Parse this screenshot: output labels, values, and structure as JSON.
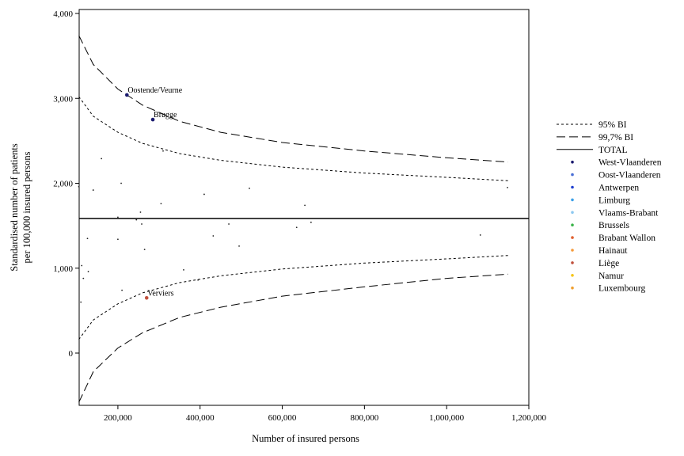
{
  "chart_data": {
    "type": "scatter",
    "title": "",
    "xlabel": "Number of insured persons",
    "ylabel_lines": [
      "Standardised number of patients",
      "per 100,000 insured persons"
    ],
    "xlim": [
      100000,
      1200000
    ],
    "ylim": [
      -600,
      4000
    ],
    "x_ticks": [
      200000,
      400000,
      600000,
      800000,
      1000000,
      1200000
    ],
    "x_tick_labels": [
      "200,000",
      "400,000",
      "600,000",
      "800,000",
      "1,000,000",
      "1,200,000"
    ],
    "y_ticks": [
      0,
      1000,
      2000,
      3000,
      4000
    ],
    "y_tick_labels": [
      "0",
      "1,000",
      "2,000",
      "3,000",
      "4,000"
    ],
    "total": 1585,
    "limit_lines": [
      {
        "name": "95% BI",
        "style": "short-dash",
        "x": [
          105000,
          140000,
          200000,
          260000,
          350000,
          450000,
          600000,
          800000,
          1000000,
          1150000
        ],
        "upper": [
          3020,
          2790,
          2600,
          2470,
          2350,
          2270,
          2190,
          2120,
          2070,
          2030
        ],
        "lower": [
          160,
          390,
          580,
          710,
          830,
          910,
          990,
          1060,
          1110,
          1150
        ]
      },
      {
        "name": "99,7% BI",
        "style": "long-dash",
        "x": [
          105000,
          140000,
          200000,
          260000,
          350000,
          450000,
          600000,
          800000,
          1000000,
          1150000
        ],
        "upper": [
          3740,
          3400,
          3110,
          2920,
          2730,
          2600,
          2480,
          2380,
          2300,
          2250
        ],
        "lower": [
          -580,
          -220,
          60,
          240,
          420,
          540,
          670,
          780,
          880,
          930
        ]
      }
    ],
    "legend": [
      {
        "label": "95% BI",
        "kind": "short-dash"
      },
      {
        "label": "99,7% BI",
        "kind": "long-dash"
      },
      {
        "label": "TOTAL",
        "kind": "solid"
      },
      {
        "label": "West-Vlaanderen",
        "kind": "dot",
        "color": "#1a1a6e"
      },
      {
        "label": "Oost-Vlaanderen",
        "kind": "dot",
        "color": "#4a6fd6"
      },
      {
        "label": "Antwerpen",
        "kind": "dot",
        "color": "#1f3fd0"
      },
      {
        "label": "Limburg",
        "kind": "dot",
        "color": "#3aa0e8"
      },
      {
        "label": "Vlaams-Brabant",
        "kind": "dot",
        "color": "#8cc8f0"
      },
      {
        "label": "Brussels",
        "kind": "dot",
        "color": "#3cb44b"
      },
      {
        "label": "Brabant Wallon",
        "kind": "dot",
        "color": "#e06030"
      },
      {
        "label": "Hainaut",
        "kind": "dot",
        "color": "#f59a3a"
      },
      {
        "label": "Liège",
        "kind": "dot",
        "color": "#c0503c"
      },
      {
        "label": "Namur",
        "kind": "dot",
        "color": "#f5c518"
      },
      {
        "label": "Luxembourg",
        "kind": "dot",
        "color": "#f0a030"
      }
    ],
    "highlighted_points": [
      {
        "label": "Oostende/Veurne",
        "x": 222000,
        "y": 3040,
        "color": "#1a1a6e"
      },
      {
        "label": "Brugge",
        "x": 285000,
        "y": 2750,
        "color": "#1a1a6e"
      },
      {
        "label": "Verviers",
        "x": 270000,
        "y": 650,
        "color": "#c0503c"
      }
    ],
    "points": [
      {
        "x": 105000,
        "y": 1960
      },
      {
        "x": 110000,
        "y": 600
      },
      {
        "x": 112000,
        "y": 1030
      },
      {
        "x": 116000,
        "y": 880
      },
      {
        "x": 126000,
        "y": 1350
      },
      {
        "x": 128000,
        "y": 960
      },
      {
        "x": 140000,
        "y": 1920
      },
      {
        "x": 160000,
        "y": 2290
      },
      {
        "x": 200000,
        "y": 1340
      },
      {
        "x": 200000,
        "y": 1600
      },
      {
        "x": 208000,
        "y": 2000
      },
      {
        "x": 210000,
        "y": 740
      },
      {
        "x": 245000,
        "y": 1570
      },
      {
        "x": 255000,
        "y": 1660
      },
      {
        "x": 258000,
        "y": 1520
      },
      {
        "x": 265000,
        "y": 1220
      },
      {
        "x": 305000,
        "y": 1760
      },
      {
        "x": 310000,
        "y": 2380
      },
      {
        "x": 360000,
        "y": 980
      },
      {
        "x": 395000,
        "y": 860
      },
      {
        "x": 410000,
        "y": 1870
      },
      {
        "x": 432000,
        "y": 1380
      },
      {
        "x": 470000,
        "y": 1520
      },
      {
        "x": 495000,
        "y": 1260
      },
      {
        "x": 520000,
        "y": 1940
      },
      {
        "x": 635000,
        "y": 1480
      },
      {
        "x": 655000,
        "y": 1740
      },
      {
        "x": 670000,
        "y": 1540
      },
      {
        "x": 1082000,
        "y": 1390
      },
      {
        "x": 1148000,
        "y": 1950
      }
    ]
  }
}
